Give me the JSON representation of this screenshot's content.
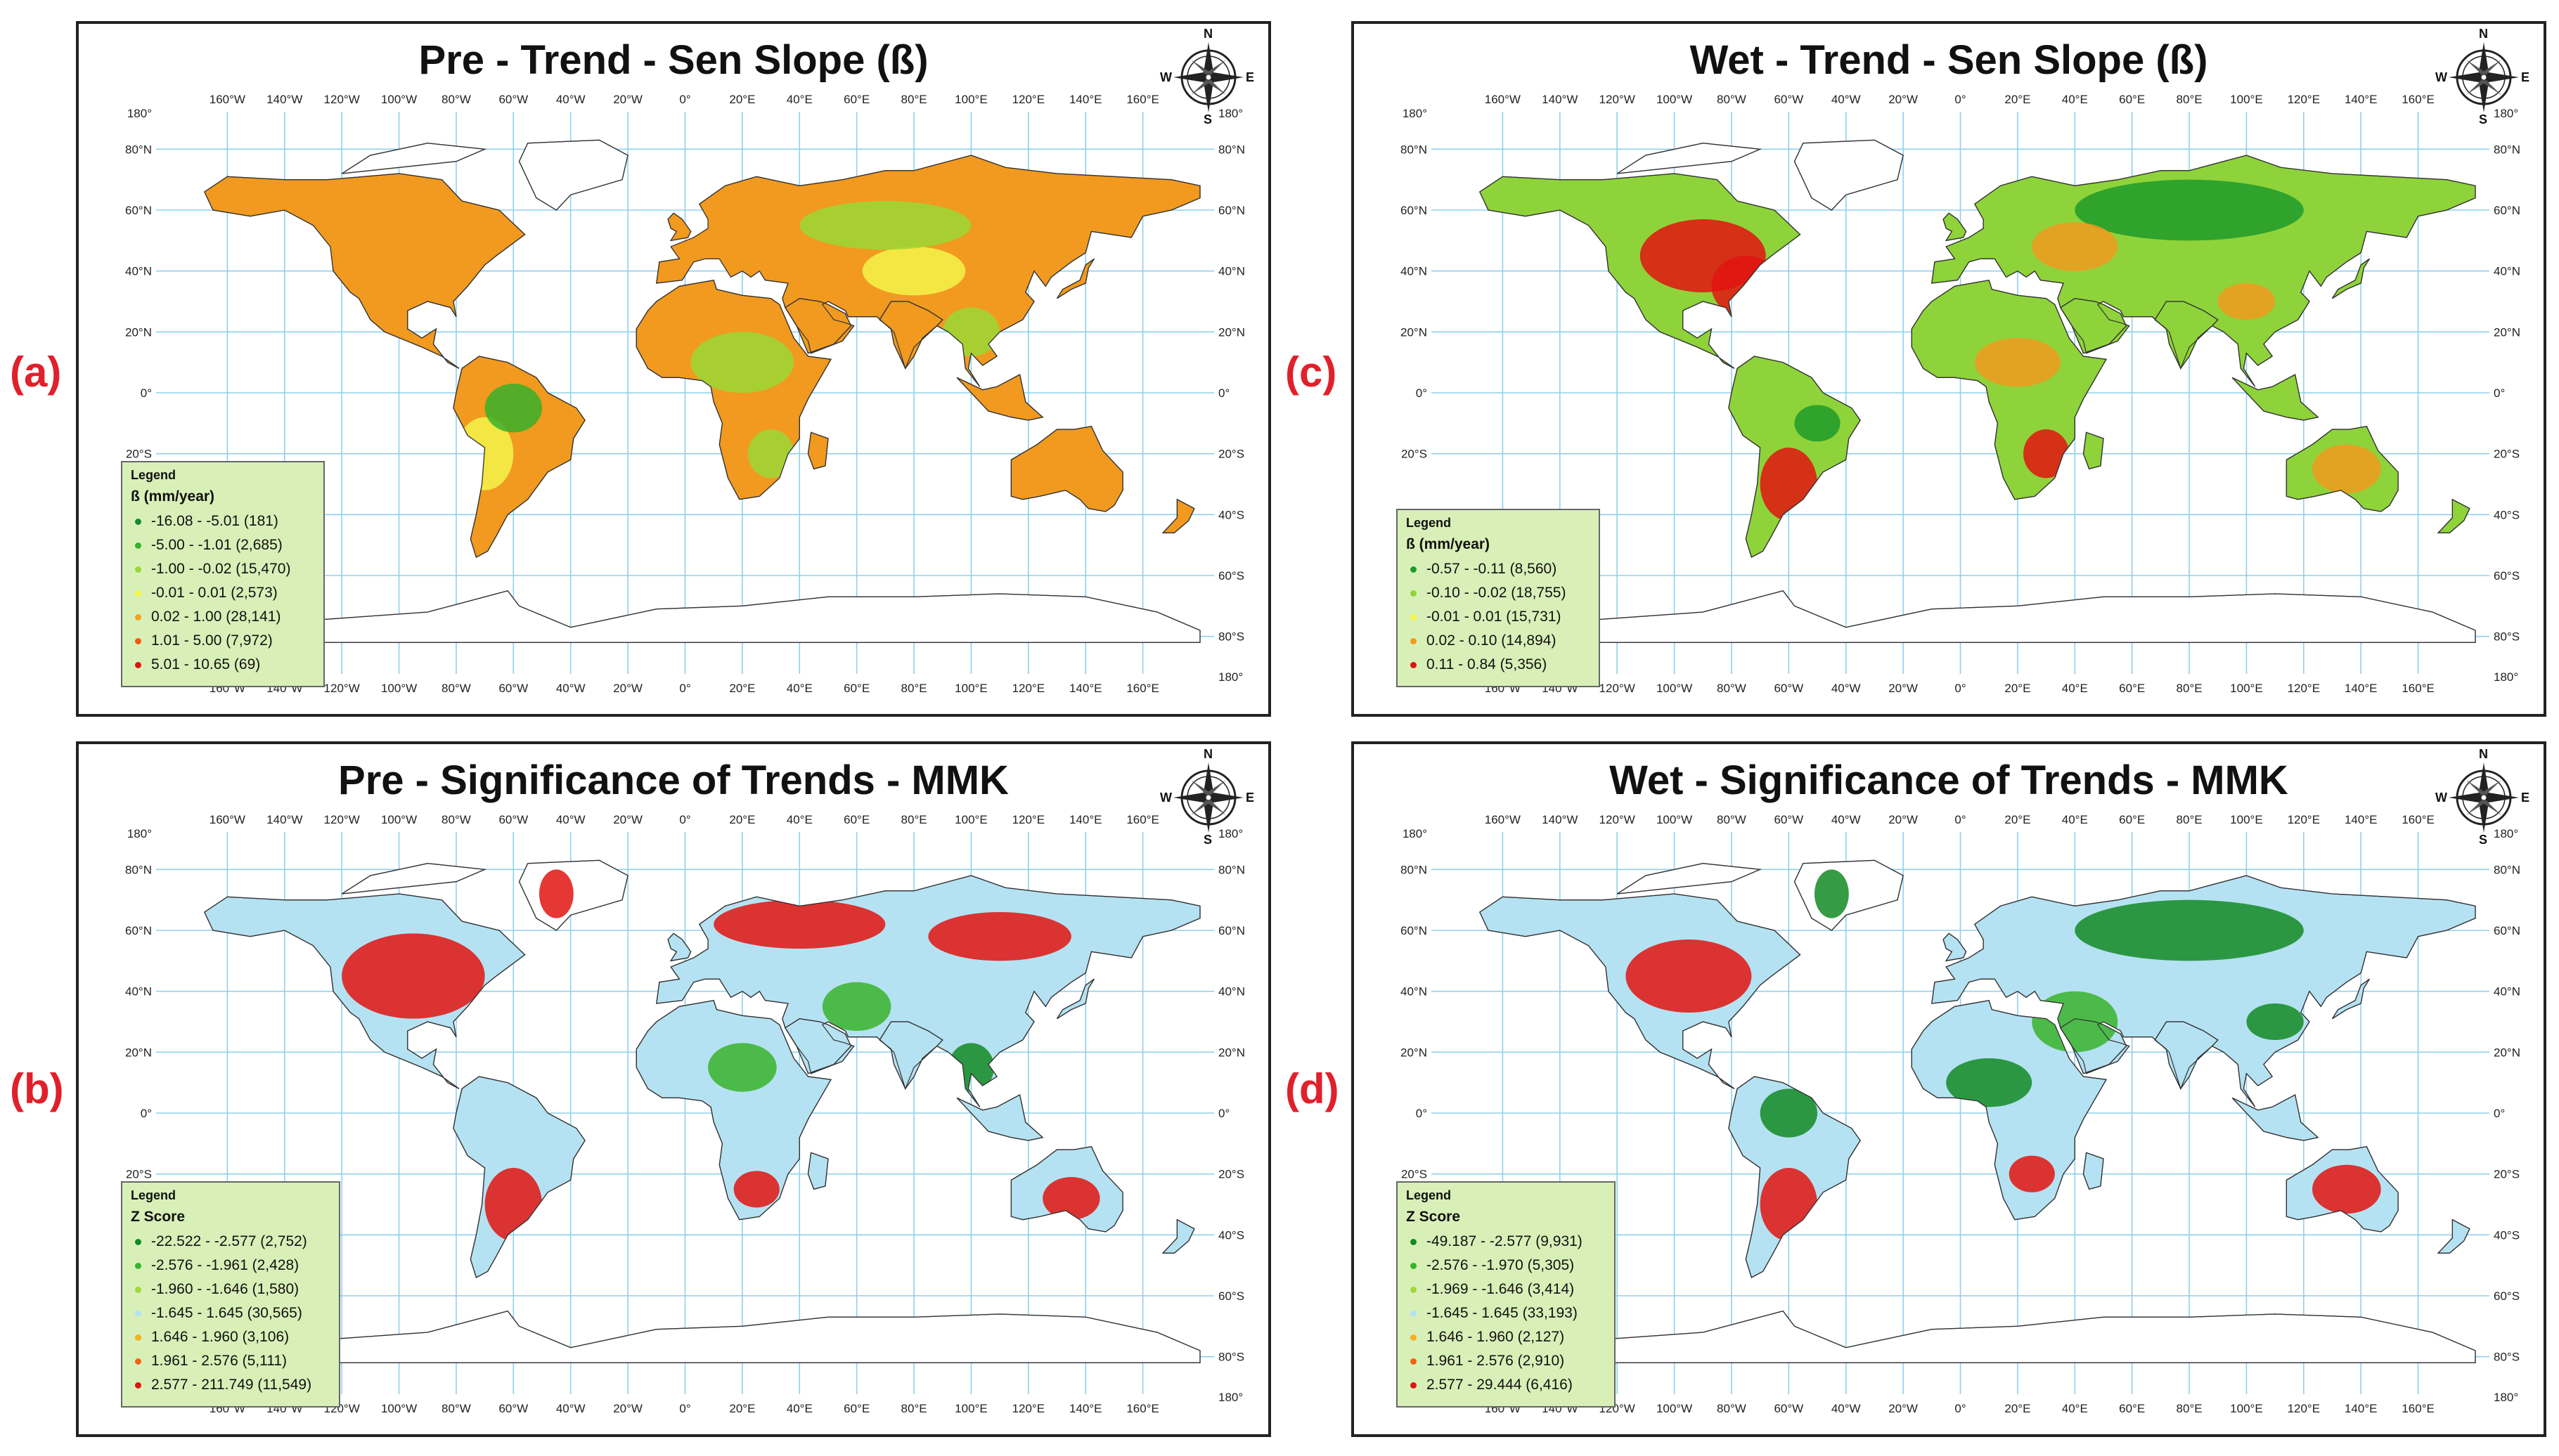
{
  "panels": [
    {
      "letter": "(a)",
      "title": "Pre - Trend - Sen Slope (ß)",
      "legend": {
        "heading": "Legend",
        "unit": "ß (mm/year)",
        "items": [
          {
            "label": "-16.08 - -5.01 (181)",
            "color": "#1a8a2a"
          },
          {
            "label": "-5.00 - -1.01 (2,685)",
            "color": "#38b02a"
          },
          {
            "label": "-1.00 - -0.02 (15,470)",
            "color": "#9bd835"
          },
          {
            "label": "-0.01 - 0.01 (2,573)",
            "color": "#f5f54a"
          },
          {
            "label": "0.02 - 1.00 (28,141)",
            "color": "#f6a21c"
          },
          {
            "label": "1.01 - 5.00 (7,972)",
            "color": "#ef5a16"
          },
          {
            "label": "5.01 - 10.65 (69)",
            "color": "#e01410"
          }
        ]
      },
      "palette": {
        "ocean": "#ffffff",
        "land": "#f19a1f",
        "secondary": "#9bd835",
        "tertiary": "#f5f54a",
        "accent": "#38b02a"
      }
    },
    {
      "letter": "(b)",
      "title": "Pre - Significance of Trends - MMK",
      "legend": {
        "heading": "Legend",
        "unit": "Z Score",
        "items": [
          {
            "label": "-22.522 - -2.577 (2,752)",
            "color": "#138a24"
          },
          {
            "label": "-2.576 - -1.961 (2,428)",
            "color": "#3ab32c"
          },
          {
            "label": "-1.960 - -1.646 (1,580)",
            "color": "#9fd83a"
          },
          {
            "label": "-1.645 - 1.645 (30,565)",
            "color": "#b5e2f2"
          },
          {
            "label": "1.646 - 1.960 (3,106)",
            "color": "#f5b022"
          },
          {
            "label": "1.961 - 2.576 (5,111)",
            "color": "#ef6418"
          },
          {
            "label": "2.577 - 211.749 (11,549)",
            "color": "#e01410"
          }
        ]
      },
      "palette": {
        "ocean": "#ffffff",
        "land": "#b5e2f2",
        "secondary": "#e01410",
        "tertiary": "#3ab32c",
        "accent": "#138a24"
      }
    },
    {
      "letter": "(c)",
      "title": "Wet - Trend - Sen Slope (ß)",
      "legend": {
        "heading": "Legend",
        "unit": "ß (mm/year)",
        "items": [
          {
            "label": "-0.57 - -0.11 (8,560)",
            "color": "#1f9a2a"
          },
          {
            "label": "-0.10 - -0.02 (18,755)",
            "color": "#8fd33a"
          },
          {
            "label": "-0.01 - 0.01 (15,731)",
            "color": "#f5f54a"
          },
          {
            "label": "0.02 - 0.10 (14,894)",
            "color": "#f29a1e"
          },
          {
            "label": "0.11 - 0.84 (5,356)",
            "color": "#e01410"
          }
        ]
      },
      "palette": {
        "ocean": "#ffffff",
        "land": "#8fd33a",
        "secondary": "#f29a1e",
        "tertiary": "#e01410",
        "accent": "#1f9a2a"
      }
    },
    {
      "letter": "(d)",
      "title": "Wet - Significance of Trends - MMK",
      "legend": {
        "heading": "Legend",
        "unit": "Z Score",
        "items": [
          {
            "label": "-49.187 - -2.577 (9,931)",
            "color": "#138a24"
          },
          {
            "label": "-2.576 - -1.970 (5,305)",
            "color": "#3ab32c"
          },
          {
            "label": "-1.969 - -1.646 (3,414)",
            "color": "#9fd83a"
          },
          {
            "label": "-1.645 - 1.645 (33,193)",
            "color": "#b5e2f2"
          },
          {
            "label": "1.646 - 1.960 (2,127)",
            "color": "#f5b022"
          },
          {
            "label": "1.961 - 2.576 (2,910)",
            "color": "#ef6418"
          },
          {
            "label": "2.577 - 29.444 (6,416)",
            "color": "#e01410"
          }
        ]
      },
      "palette": {
        "ocean": "#ffffff",
        "land": "#b5e2f2",
        "secondary": "#138a24",
        "tertiary": "#e01410",
        "accent": "#3ab32c"
      }
    }
  ],
  "axes": {
    "lon_labels": [
      "160°W",
      "140°W",
      "120°W",
      "100°W",
      "80°W",
      "60°W",
      "40°W",
      "20°W",
      "0°",
      "20°E",
      "40°E",
      "60°E",
      "80°E",
      "100°E",
      "120°E",
      "140°E",
      "160°E"
    ],
    "lat_labels": [
      "180°",
      "80°N",
      "60°N",
      "40°N",
      "20°N",
      "0°",
      "20°S",
      "40°S",
      "60°S",
      "80°S",
      "180°"
    ]
  },
  "compass": {
    "n": "N",
    "s": "S",
    "e": "E",
    "w": "W",
    "icon": "compass-rose-icon"
  }
}
